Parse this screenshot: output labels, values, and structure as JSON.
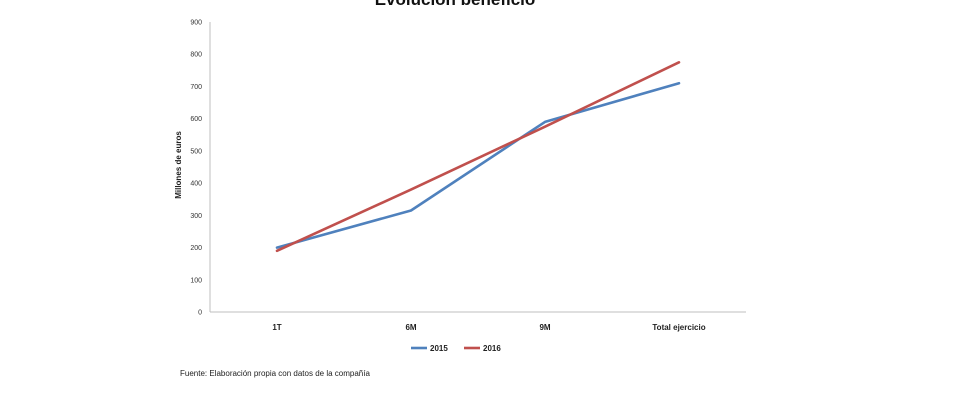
{
  "chart_data": {
    "type": "line",
    "title": "Evolución beneficio",
    "ylabel": "Millones de euros",
    "xlabel": "",
    "categories": [
      "1T",
      "6M",
      "9M",
      "Total ejercicio"
    ],
    "ylim": [
      0,
      900
    ],
    "yticks": [
      "0",
      "100",
      "200",
      "300",
      "400",
      "500",
      "600",
      "700",
      "800",
      "900"
    ],
    "grid": false,
    "legend_position": "bottom",
    "series": [
      {
        "name": "2015",
        "color": "#4f81bd",
        "values": [
          200,
          315,
          590,
          710
        ]
      },
      {
        "name": "2016",
        "color": "#c0504d",
        "values": [
          190,
          380,
          575,
          775
        ]
      }
    ]
  },
  "source_note": "Fuente: Elaboración propia con datos de la compañía"
}
